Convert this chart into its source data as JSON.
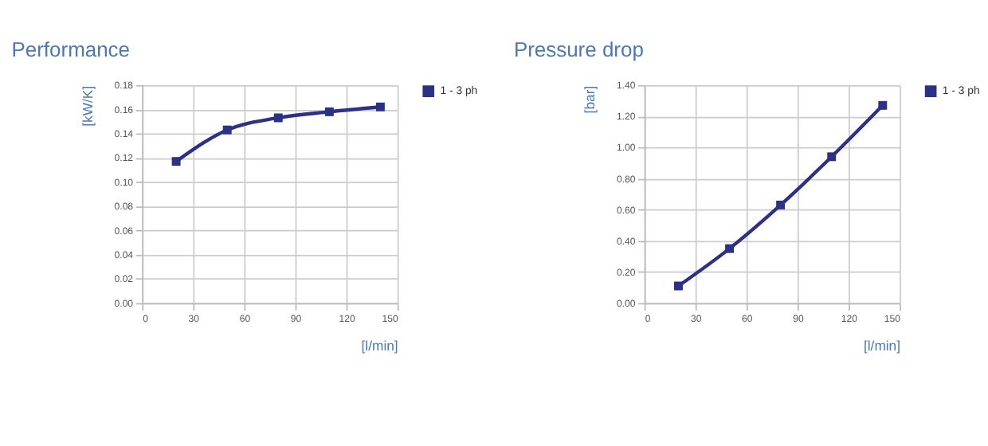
{
  "chart_data": [
    {
      "type": "line",
      "title": "Performance",
      "xlabel": "[l/min]",
      "ylabel": "[kW/K]",
      "x": [
        20,
        50,
        80,
        110,
        140
      ],
      "series": [
        {
          "name": "1 - 3 ph",
          "color": "#2b3286",
          "values": [
            0.117,
            0.143,
            0.153,
            0.158,
            0.162
          ]
        }
      ],
      "xlim": [
        0,
        150
      ],
      "xticks": [
        0,
        30,
        60,
        90,
        120,
        150
      ],
      "ylim": [
        0,
        0.18
      ],
      "yticks": [
        {
          "value": 0,
          "label": "0.00"
        },
        {
          "value": 0.02,
          "label": "0.02"
        },
        {
          "value": 0.04,
          "label": "0.04"
        },
        {
          "value": 0.06,
          "label": "0.06"
        },
        {
          "value": 0.08,
          "label": "0.08"
        },
        {
          "value": 0.1,
          "label": "0.10"
        },
        {
          "value": 0.12,
          "label": "0.12"
        },
        {
          "value": 0.14,
          "label": "0.14"
        },
        {
          "value": 0.16,
          "label": "0.16"
        },
        {
          "value": 0.18,
          "label": "0.18"
        }
      ],
      "grid": true,
      "legend": "right",
      "marker": "square",
      "line_style": "solid"
    },
    {
      "type": "line",
      "title": "Pressure drop",
      "xlabel": "[l/min]",
      "ylabel": "[bar]",
      "x": [
        20,
        50,
        80,
        110,
        140
      ],
      "series": [
        {
          "name": "1 - 3 ph",
          "color": "#2b3286",
          "values": [
            0.11,
            0.35,
            0.63,
            0.94,
            1.27
          ]
        }
      ],
      "xlim": [
        0,
        150
      ],
      "xticks": [
        0,
        30,
        60,
        90,
        120,
        150
      ],
      "ylim": [
        0,
        1.4
      ],
      "yticks": [
        {
          "value": 0,
          "label": "0.00"
        },
        {
          "value": 0.2,
          "label": "0.20"
        },
        {
          "value": 0.4,
          "label": "0.40"
        },
        {
          "value": 0.6,
          "label": "0.60"
        },
        {
          "value": 0.8,
          "label": "0.80"
        },
        {
          "value": 1.0,
          "label": "1.00"
        },
        {
          "value": 1.2,
          "label": "1.20"
        },
        {
          "value": 1.4,
          "label": "1.40"
        }
      ],
      "grid": true,
      "legend": "right",
      "marker": "square",
      "line_style": "solid"
    }
  ]
}
